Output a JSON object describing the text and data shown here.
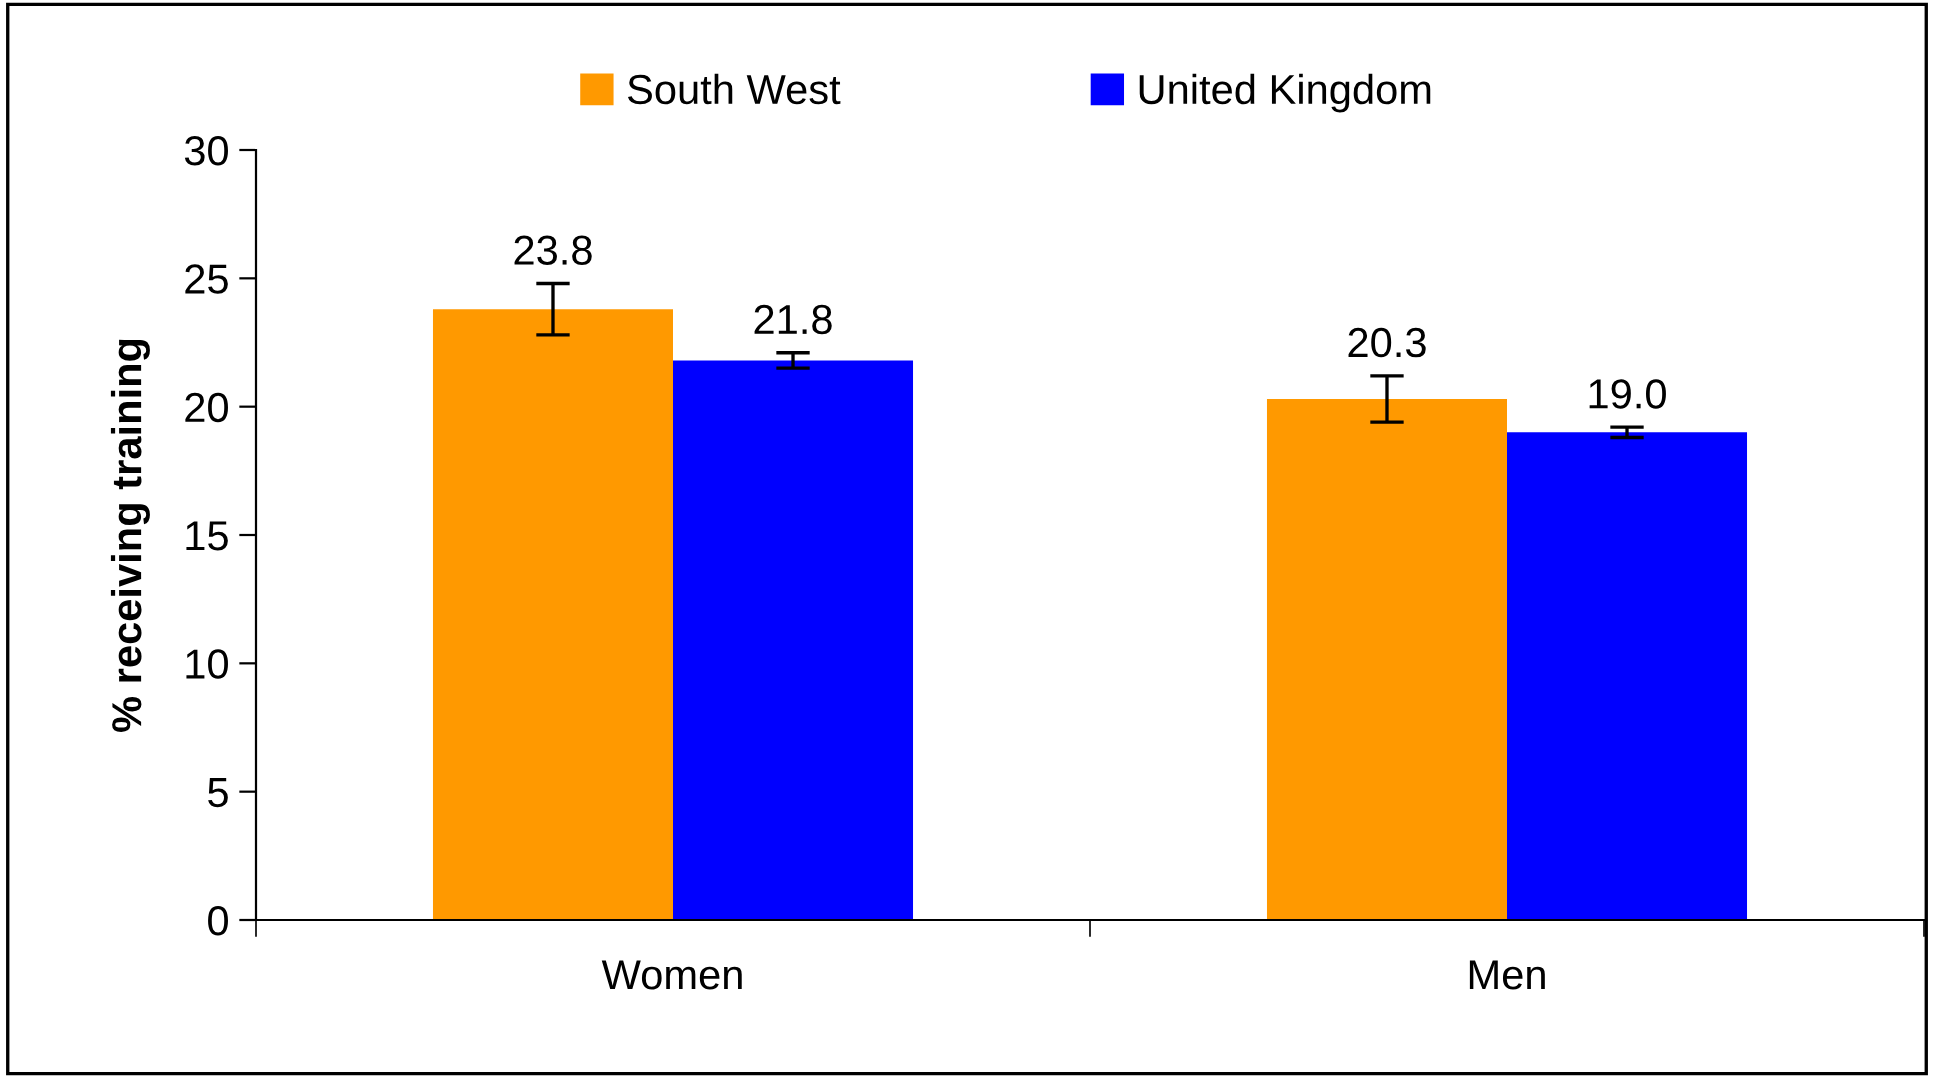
{
  "chart_data": {
    "type": "bar",
    "ylabel": "% receiving training",
    "categories": [
      "Women",
      "Men"
    ],
    "series": [
      {
        "name": "South West",
        "color": "#ff9900",
        "values": [
          23.8,
          20.3
        ],
        "value_labels": [
          "23.8",
          "20.3"
        ],
        "errors": [
          1.0,
          0.9
        ]
      },
      {
        "name": "United Kingdom",
        "color": "#0000ff",
        "values": [
          21.8,
          19.0
        ],
        "value_labels": [
          "21.8",
          "19.0"
        ],
        "errors": [
          0.3,
          0.2
        ]
      }
    ],
    "ylim": [
      0,
      30
    ],
    "yticks": [
      0,
      5,
      10,
      15,
      20,
      25,
      30
    ],
    "grid": false,
    "legend": "top"
  }
}
